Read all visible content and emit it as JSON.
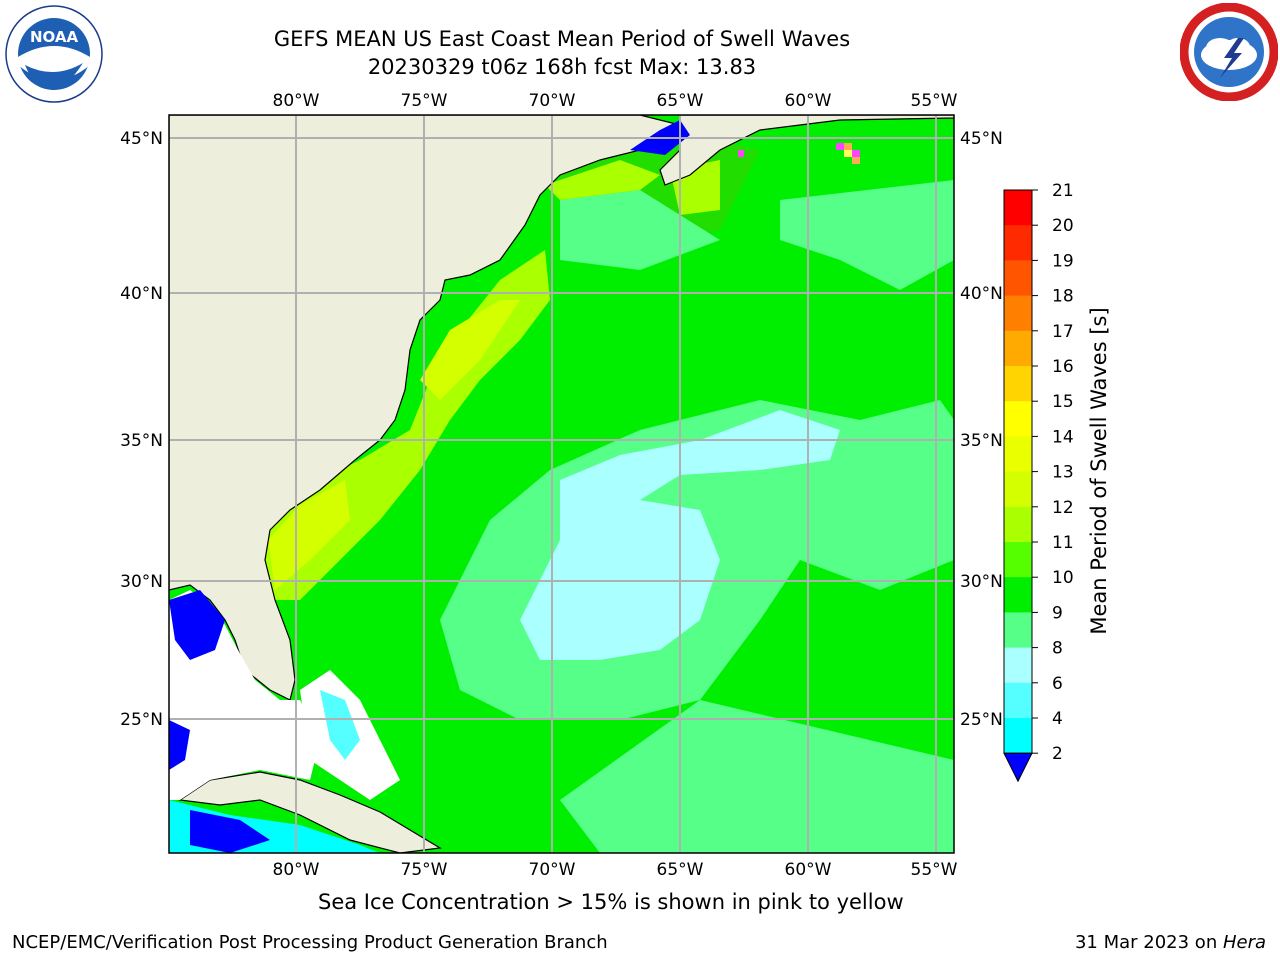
{
  "title": {
    "line1": "GEFS MEAN US East Coast Mean Period of Swell Waves",
    "line2": "20230329 t06z 168h fcst   Max: 13.83"
  },
  "logos": {
    "noaa": {
      "text": "NOAA",
      "icon": "noaa-logo-icon"
    },
    "nws": {
      "icon": "nws-logo-icon"
    }
  },
  "map": {
    "lon_labels": [
      "80°W",
      "75°W",
      "70°W",
      "65°W",
      "60°W",
      "55°W"
    ],
    "lat_labels": [
      "45°N",
      "40°N",
      "35°N",
      "30°N",
      "25°N"
    ],
    "land_color": "#eeeedd",
    "grid_color": "#b0b0b0"
  },
  "colorbar": {
    "title": "Mean Period of Swell Waves [s]",
    "ticks": [
      "21",
      "20",
      "19",
      "18",
      "17",
      "16",
      "15",
      "14",
      "13",
      "12",
      "11",
      "10",
      "9",
      "8",
      "6",
      "4",
      "2"
    ],
    "colors_top_to_bottom": [
      "#ff0000",
      "#ff2a00",
      "#ff5500",
      "#ff7f00",
      "#ffaa00",
      "#ffd400",
      "#ffff00",
      "#eaff00",
      "#d4ff00",
      "#aaff00",
      "#55ff00",
      "#00ee00",
      "#55ff88",
      "#aaffff",
      "#55ffff",
      "#00ffff",
      "#00ddff",
      "#0077ff"
    ],
    "extend_color": "#0000ff"
  },
  "note": "Sea Ice Concentration > 15% is shown in pink to yellow",
  "footer": {
    "left": "NCEP/EMC/Verification Post Processing Product Generation Branch",
    "right_prefix": "31 Mar 2023 on ",
    "right_machine": "Hera"
  }
}
